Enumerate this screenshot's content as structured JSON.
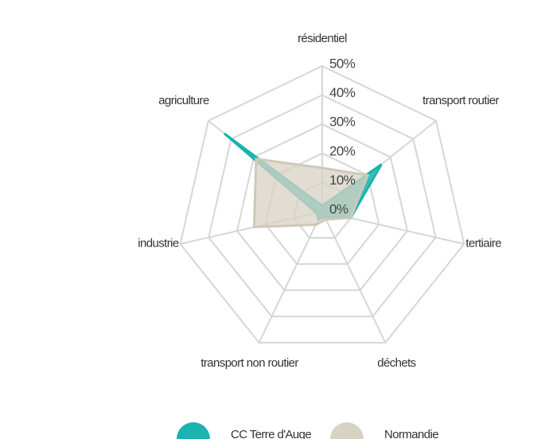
{
  "chart_data": {
    "type": "radar",
    "categories": [
      "résidentiel",
      "transport routier",
      "tertiaire",
      "déchets",
      "transport non routier",
      "industrie",
      "agriculture"
    ],
    "series": [
      {
        "name": "CC Terre d'Auge",
        "color": "#1ab3ad",
        "values": [
          2,
          26,
          10,
          2,
          3,
          2,
          43
        ]
      },
      {
        "name": "Normandie",
        "color": "#d8d2c4",
        "values": [
          15,
          20,
          10,
          3,
          5,
          24,
          29
        ]
      }
    ],
    "rlim": [
      0,
      50
    ],
    "rticks": [
      {
        "value": 0,
        "label": "0%"
      },
      {
        "value": 10,
        "label": "10%"
      },
      {
        "value": 20,
        "label": "20%"
      },
      {
        "value": 30,
        "label": "30%"
      },
      {
        "value": 40,
        "label": "40%"
      },
      {
        "value": 50,
        "label": "50%"
      }
    ],
    "legend": "bottom"
  }
}
